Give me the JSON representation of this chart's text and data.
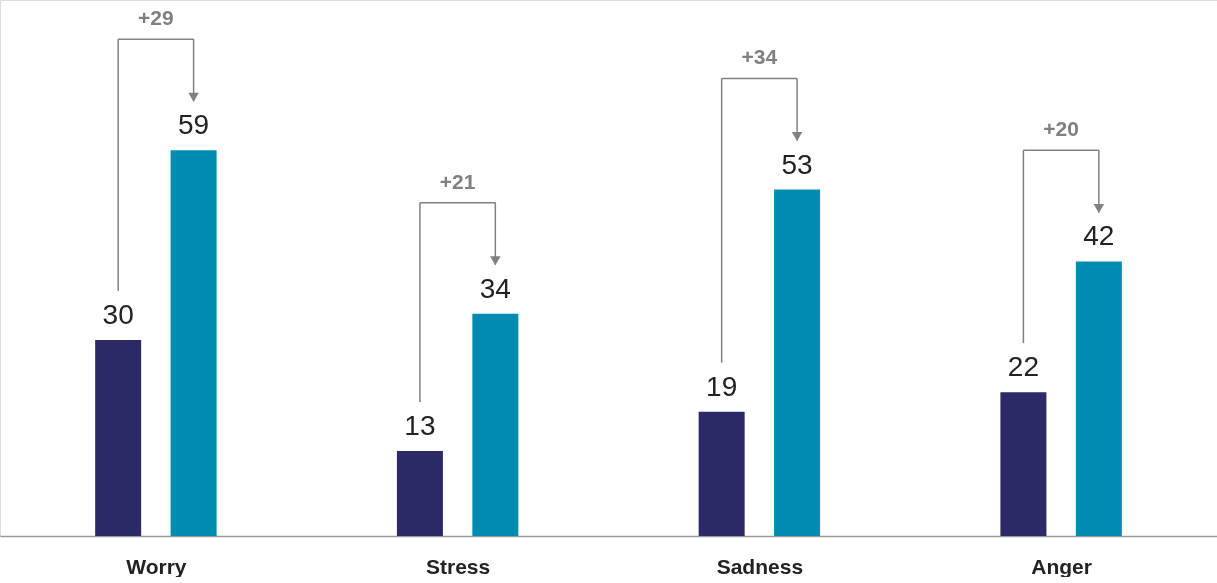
{
  "chart_data": {
    "type": "bar",
    "categories": [
      "Worry",
      "Stress",
      "Sadness",
      "Anger"
    ],
    "series": [
      {
        "color": "#2b2a66",
        "values": [
          30,
          13,
          19,
          22
        ]
      },
      {
        "color": "#008cb0",
        "values": [
          59,
          34,
          53,
          42
        ]
      }
    ],
    "ylim": [
      0,
      82
    ],
    "tick_labels": "x",
    "data_labels": true,
    "grid": false,
    "legend": false,
    "annotations": [
      "+29",
      "+21",
      "+34",
      "+20"
    ]
  }
}
